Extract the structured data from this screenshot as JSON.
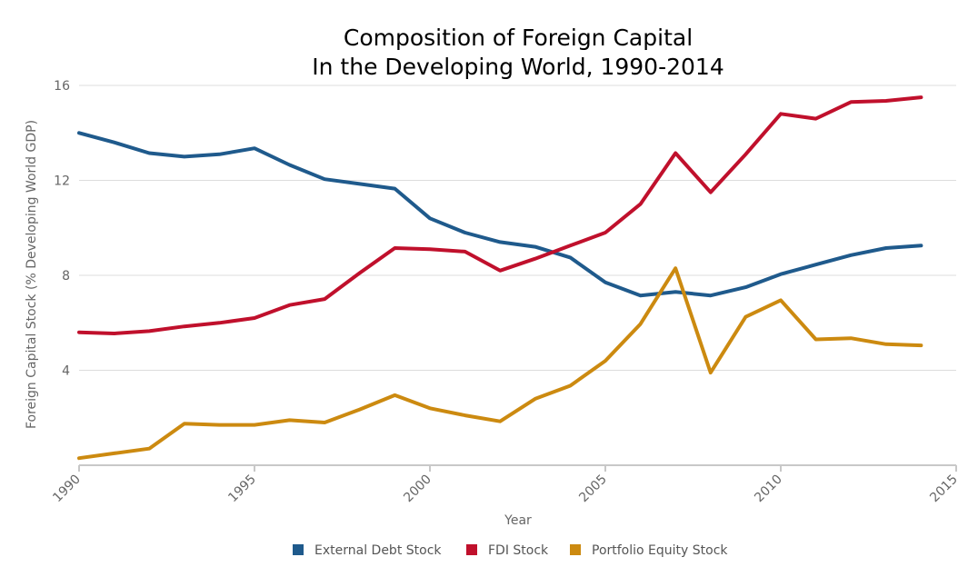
{
  "chart_data": {
    "type": "line",
    "title": [
      "Composition of Foreign Capital",
      "In the Developing World, 1990-2014"
    ],
    "xlabel": "Year",
    "ylabel": "Foreign Capital Stock (% Developing World GDP)",
    "xlim": [
      1990,
      2015
    ],
    "ylim": [
      0,
      16
    ],
    "x_ticks": [
      1990,
      1995,
      2000,
      2005,
      2010,
      2015
    ],
    "y_ticks": [
      4,
      8,
      12,
      16
    ],
    "grid": true,
    "legend_position": "bottom",
    "x": [
      1990,
      1991,
      1992,
      1993,
      1994,
      1995,
      1996,
      1997,
      1998,
      1999,
      2000,
      2001,
      2002,
      2003,
      2004,
      2005,
      2006,
      2007,
      2008,
      2009,
      2010,
      2011,
      2012,
      2013,
      2014
    ],
    "series": [
      {
        "name": "External Debt Stock",
        "color": "#1f5a8c",
        "values": [
          14.0,
          13.6,
          13.15,
          13.0,
          13.1,
          13.35,
          12.65,
          12.05,
          11.85,
          11.65,
          10.4,
          9.8,
          9.4,
          9.2,
          8.75,
          7.7,
          7.15,
          7.3,
          7.15,
          7.5,
          8.05,
          8.45,
          8.85,
          9.15,
          9.25
        ]
      },
      {
        "name": "FDI Stock",
        "color": "#c0102c",
        "values": [
          5.6,
          5.55,
          5.65,
          5.85,
          6.0,
          6.2,
          6.75,
          7.0,
          8.1,
          9.15,
          9.1,
          9.0,
          8.2,
          8.7,
          9.25,
          9.8,
          11.0,
          13.15,
          11.5,
          13.1,
          14.8,
          14.6,
          15.3,
          15.35,
          15.5
        ]
      },
      {
        "name": "Portfolio Equity Stock",
        "color": "#cc8a10",
        "values": [
          0.3,
          0.5,
          0.7,
          1.75,
          1.7,
          1.7,
          1.9,
          1.8,
          2.35,
          2.95,
          2.4,
          2.1,
          1.85,
          2.8,
          3.35,
          4.4,
          5.95,
          8.3,
          3.9,
          6.25,
          6.95,
          5.3,
          5.35,
          5.1,
          5.05
        ]
      }
    ]
  }
}
